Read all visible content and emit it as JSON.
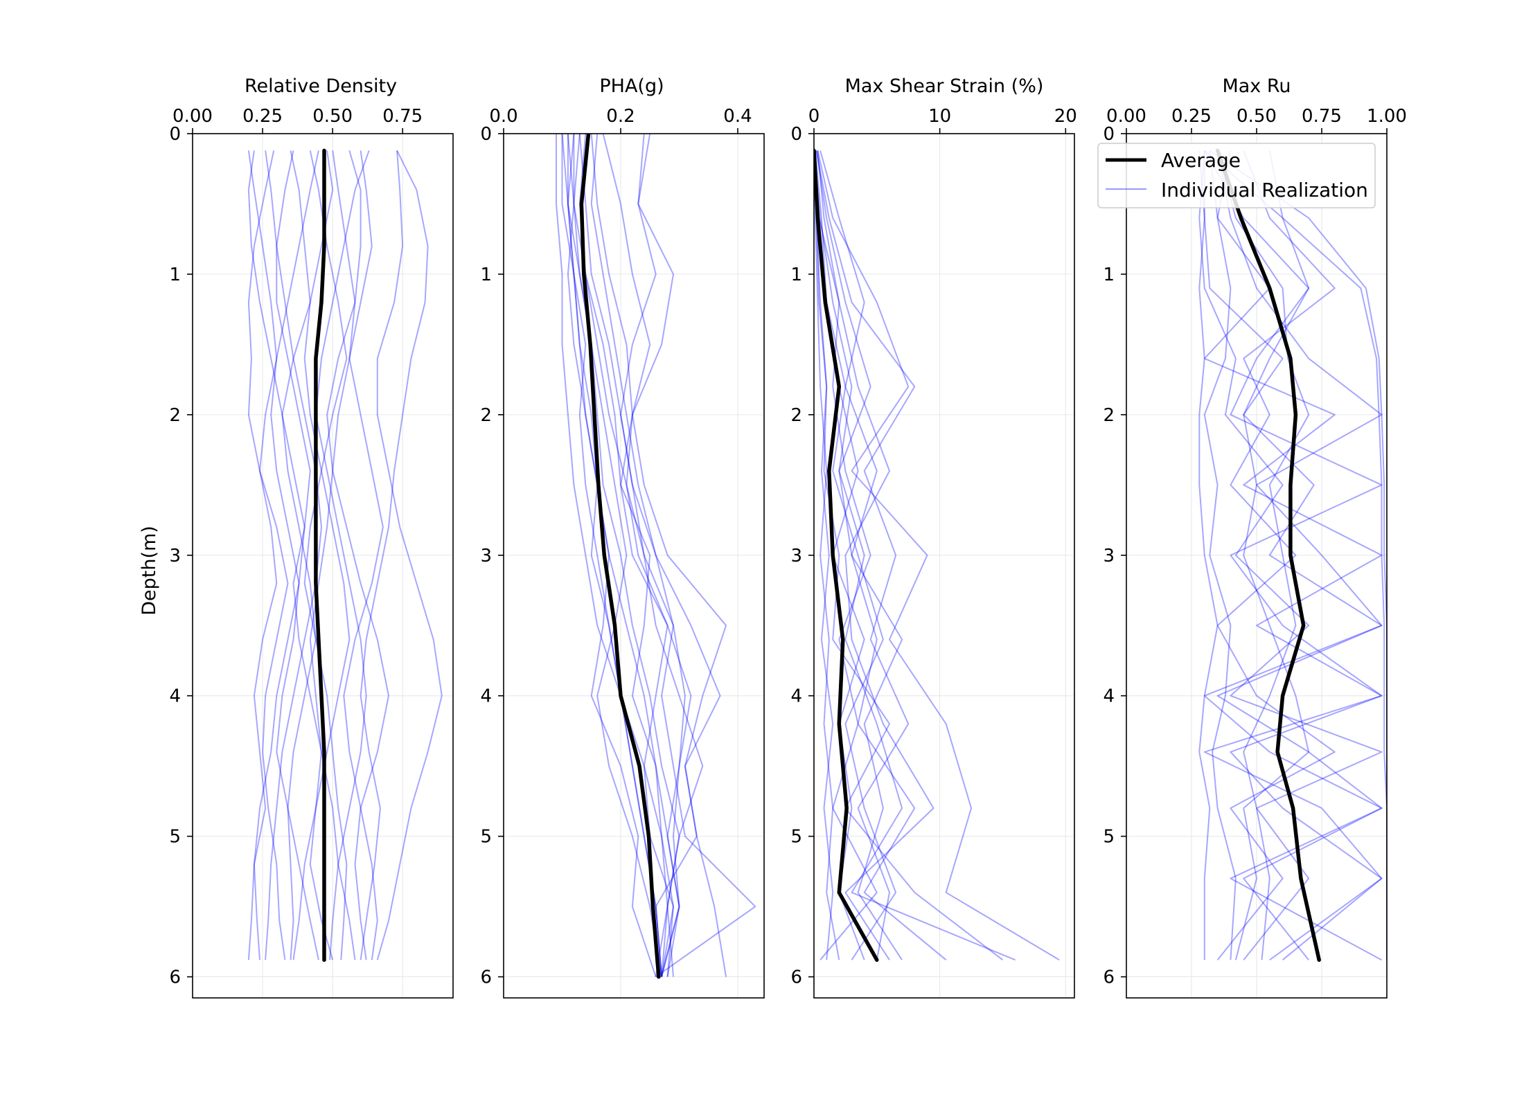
{
  "chart_data": [
    {
      "type": "line",
      "title": "Relative Density",
      "ylabel": "Depth(m)",
      "xlim": [
        0,
        0.93
      ],
      "ylim": [
        6.15,
        0
      ],
      "xticks": [
        0.0,
        0.25,
        0.5,
        0.75
      ],
      "xtick_labels": [
        "0.00",
        "0.25",
        "0.50",
        "0.75"
      ],
      "yticks": [
        0,
        1,
        2,
        3,
        4,
        5,
        6
      ],
      "ytick_labels": [
        "0",
        "1",
        "2",
        "3",
        "4",
        "5",
        "6"
      ],
      "grid": true,
      "depth": [
        0.12,
        0.4,
        0.8,
        1.2,
        1.6,
        2.0,
        2.4,
        2.8,
        3.2,
        3.6,
        4.0,
        4.4,
        4.8,
        5.2,
        5.6,
        5.88
      ],
      "average": {
        "name": "Average",
        "values": [
          0.47,
          0.47,
          0.47,
          0.46,
          0.44,
          0.44,
          0.44,
          0.44,
          0.44,
          0.45,
          0.46,
          0.47,
          0.47,
          0.47,
          0.47,
          0.47
        ]
      },
      "realizations": [
        [
          0.2,
          0.22,
          0.25,
          0.28,
          0.3,
          0.26,
          0.24,
          0.28,
          0.3,
          0.25,
          0.22,
          0.24,
          0.26,
          0.22,
          0.21,
          0.2
        ],
        [
          0.29,
          0.26,
          0.22,
          0.2,
          0.21,
          0.2,
          0.24,
          0.3,
          0.34,
          0.3,
          0.26,
          0.25,
          0.27,
          0.3,
          0.31,
          0.33
        ],
        [
          0.35,
          0.38,
          0.4,
          0.42,
          0.36,
          0.32,
          0.34,
          0.38,
          0.42,
          0.44,
          0.4,
          0.36,
          0.34,
          0.35,
          0.36,
          0.35
        ],
        [
          0.42,
          0.45,
          0.48,
          0.52,
          0.55,
          0.5,
          0.46,
          0.42,
          0.4,
          0.44,
          0.48,
          0.5,
          0.52,
          0.55,
          0.54,
          0.53
        ],
        [
          0.5,
          0.52,
          0.55,
          0.58,
          0.56,
          0.52,
          0.5,
          0.48,
          0.45,
          0.42,
          0.44,
          0.46,
          0.5,
          0.52,
          0.56,
          0.58
        ],
        [
          0.56,
          0.6,
          0.6,
          0.58,
          0.52,
          0.48,
          0.5,
          0.55,
          0.6,
          0.66,
          0.7,
          0.66,
          0.6,
          0.58,
          0.6,
          0.62
        ],
        [
          0.63,
          0.58,
          0.54,
          0.5,
          0.46,
          0.44,
          0.48,
          0.52,
          0.56,
          0.6,
          0.62,
          0.6,
          0.56,
          0.52,
          0.5,
          0.49
        ],
        [
          0.73,
          0.74,
          0.75,
          0.72,
          0.66,
          0.66,
          0.7,
          0.74,
          0.8,
          0.86,
          0.89,
          0.84,
          0.78,
          0.74,
          0.7,
          0.66
        ],
        [
          0.73,
          0.8,
          0.84,
          0.83,
          0.78,
          0.75,
          0.72,
          0.7,
          0.66,
          0.62,
          0.6,
          0.63,
          0.67,
          0.65,
          0.62,
          0.6
        ],
        [
          0.26,
          0.28,
          0.3,
          0.33,
          0.36,
          0.4,
          0.44,
          0.46,
          0.44,
          0.4,
          0.36,
          0.32,
          0.3,
          0.28,
          0.27,
          0.26
        ],
        [
          0.45,
          0.42,
          0.38,
          0.34,
          0.3,
          0.28,
          0.3,
          0.34,
          0.38,
          0.36,
          0.32,
          0.3,
          0.34,
          0.38,
          0.42,
          0.45
        ],
        [
          0.48,
          0.5,
          0.46,
          0.42,
          0.4,
          0.42,
          0.46,
          0.5,
          0.54,
          0.56,
          0.52,
          0.48,
          0.44,
          0.42,
          0.46,
          0.5
        ],
        [
          0.22,
          0.2,
          0.21,
          0.24,
          0.28,
          0.32,
          0.36,
          0.4,
          0.38,
          0.34,
          0.3,
          0.28,
          0.24,
          0.22,
          0.23,
          0.24
        ],
        [
          0.36,
          0.33,
          0.3,
          0.3,
          0.34,
          0.38,
          0.42,
          0.4,
          0.36,
          0.38,
          0.42,
          0.46,
          0.44,
          0.4,
          0.38,
          0.36
        ],
        [
          0.6,
          0.62,
          0.64,
          0.6,
          0.56,
          0.6,
          0.64,
          0.68,
          0.64,
          0.58,
          0.54,
          0.56,
          0.6,
          0.64,
          0.66,
          0.64
        ]
      ]
    },
    {
      "type": "line",
      "title": "PHA(g)",
      "xlim": [
        0,
        0.445
      ],
      "ylim": [
        6.15,
        0
      ],
      "xticks": [
        0.0,
        0.2,
        0.4
      ],
      "xtick_labels": [
        "0.0",
        "0.2",
        "0.4"
      ],
      "yticks": [
        0,
        1,
        2,
        3,
        4,
        5,
        6
      ],
      "ytick_labels": [
        "0",
        "1",
        "2",
        "3",
        "4",
        "5",
        "6"
      ],
      "grid": true,
      "depth": [
        0.0,
        0.5,
        1.0,
        1.5,
        2.0,
        2.5,
        3.0,
        3.5,
        4.0,
        4.5,
        5.0,
        5.5,
        6.0
      ],
      "average": {
        "name": "Average",
        "values": [
          0.145,
          0.133,
          0.137,
          0.148,
          0.155,
          0.162,
          0.172,
          0.19,
          0.2,
          0.232,
          0.248,
          0.255,
          0.265
        ]
      },
      "realizations": [
        [
          0.09,
          0.09,
          0.1,
          0.1,
          0.11,
          0.12,
          0.14,
          0.16,
          0.2,
          0.24,
          0.27,
          0.28,
          0.29
        ],
        [
          0.1,
          0.1,
          0.12,
          0.14,
          0.13,
          0.14,
          0.16,
          0.18,
          0.2,
          0.22,
          0.24,
          0.26,
          0.27
        ],
        [
          0.11,
          0.11,
          0.12,
          0.13,
          0.14,
          0.16,
          0.18,
          0.21,
          0.24,
          0.26,
          0.28,
          0.3,
          0.28
        ],
        [
          0.12,
          0.12,
          0.13,
          0.15,
          0.16,
          0.17,
          0.2,
          0.22,
          0.25,
          0.27,
          0.3,
          0.28,
          0.27
        ],
        [
          0.13,
          0.14,
          0.15,
          0.18,
          0.2,
          0.22,
          0.24,
          0.26,
          0.3,
          0.34,
          0.3,
          0.28,
          0.26
        ],
        [
          0.15,
          0.16,
          0.18,
          0.21,
          0.22,
          0.2,
          0.22,
          0.28,
          0.32,
          0.3,
          0.28,
          0.3,
          0.27
        ],
        [
          0.17,
          0.2,
          0.22,
          0.25,
          0.22,
          0.24,
          0.28,
          0.38,
          0.34,
          0.31,
          0.33,
          0.36,
          0.38
        ],
        [
          0.24,
          0.23,
          0.29,
          0.27,
          0.22,
          0.21,
          0.24,
          0.29,
          0.27,
          0.29,
          0.31,
          0.43,
          0.26
        ],
        [
          0.25,
          0.23,
          0.26,
          0.22,
          0.2,
          0.22,
          0.26,
          0.32,
          0.37,
          0.31,
          0.33,
          0.26,
          0.27
        ],
        [
          0.14,
          0.13,
          0.14,
          0.16,
          0.18,
          0.21,
          0.23,
          0.28,
          0.26,
          0.24,
          0.25,
          0.29,
          0.28
        ],
        [
          0.12,
          0.11,
          0.12,
          0.13,
          0.15,
          0.16,
          0.15,
          0.18,
          0.2,
          0.22,
          0.24,
          0.26,
          0.27
        ],
        [
          0.1,
          0.11,
          0.13,
          0.15,
          0.17,
          0.19,
          0.21,
          0.19,
          0.16,
          0.18,
          0.22,
          0.25,
          0.27
        ],
        [
          0.13,
          0.12,
          0.14,
          0.17,
          0.19,
          0.2,
          0.25,
          0.24,
          0.22,
          0.26,
          0.27,
          0.29,
          0.27
        ],
        [
          0.11,
          0.12,
          0.11,
          0.12,
          0.14,
          0.16,
          0.18,
          0.17,
          0.15,
          0.2,
          0.23,
          0.22,
          0.26
        ],
        [
          0.16,
          0.15,
          0.17,
          0.19,
          0.21,
          0.23,
          0.26,
          0.29,
          0.31,
          0.3,
          0.29,
          0.3,
          0.27
        ]
      ]
    },
    {
      "type": "line",
      "title": "Max Shear Strain (%)",
      "xlim": [
        0,
        20.7
      ],
      "ylim": [
        6.15,
        0
      ],
      "xticks": [
        0,
        10,
        20
      ],
      "xtick_labels": [
        "0",
        "10",
        "20"
      ],
      "yticks": [
        0,
        1,
        2,
        3,
        4,
        5,
        6
      ],
      "ytick_labels": [
        "0",
        "1",
        "2",
        "3",
        "4",
        "5",
        "6"
      ],
      "grid": true,
      "depth": [
        0.12,
        0.6,
        1.2,
        1.8,
        2.4,
        3.0,
        3.6,
        4.2,
        4.8,
        5.4,
        5.88
      ],
      "average": {
        "name": "Average",
        "values": [
          0.0,
          0.3,
          0.9,
          2.0,
          1.2,
          1.5,
          2.3,
          2.0,
          2.6,
          2.0,
          5.0
        ]
      },
      "realizations": [
        [
          0.0,
          0.5,
          1.5,
          3.0,
          2.0,
          4.0,
          2.5,
          5.0,
          7.0,
          3.0,
          16.0
        ],
        [
          0.3,
          1.5,
          5.0,
          7.5,
          3.0,
          9.0,
          6.0,
          10.5,
          12.5,
          10.5,
          19.5
        ],
        [
          0.2,
          1.0,
          2.5,
          4.5,
          2.0,
          3.0,
          5.0,
          3.5,
          8.0,
          4.0,
          10.5
        ],
        [
          0.1,
          0.3,
          1.0,
          2.0,
          3.5,
          1.5,
          4.0,
          2.0,
          3.0,
          2.0,
          4.0
        ],
        [
          0.0,
          0.2,
          0.5,
          1.0,
          0.8,
          2.0,
          1.5,
          6.0,
          2.5,
          8.0,
          15.0
        ],
        [
          0.2,
          1.2,
          3.0,
          8.0,
          4.0,
          6.5,
          4.5,
          7.5,
          3.5,
          6.0,
          5.0
        ],
        [
          0.0,
          0.1,
          0.3,
          0.5,
          1.0,
          0.5,
          1.2,
          0.8,
          1.5,
          1.0,
          2.0
        ],
        [
          0.5,
          2.0,
          4.0,
          2.5,
          5.0,
          3.0,
          7.0,
          4.0,
          5.5,
          3.5,
          7.0
        ],
        [
          0.1,
          0.4,
          2.0,
          1.5,
          2.5,
          4.5,
          2.0,
          3.5,
          1.5,
          5.0,
          0.5
        ],
        [
          0.0,
          0.2,
          0.4,
          1.0,
          0.6,
          1.2,
          0.6,
          1.5,
          0.8,
          1.5,
          1.0
        ],
        [
          0.3,
          0.8,
          2.0,
          3.5,
          6.0,
          2.5,
          3.0,
          5.5,
          9.5,
          2.5,
          6.0
        ],
        [
          0.1,
          0.6,
          1.0,
          2.5,
          1.5,
          3.5,
          5.5,
          2.5,
          4.0,
          6.5,
          3.0
        ]
      ]
    },
    {
      "type": "line",
      "title": "Max Ru",
      "xlim": [
        0,
        1.0
      ],
      "ylim": [
        6.15,
        0
      ],
      "xticks": [
        0.0,
        0.25,
        0.5,
        0.75,
        1.0
      ],
      "xtick_labels": [
        "0.00",
        "0.25",
        "0.50",
        "0.75",
        "1.00"
      ],
      "yticks": [
        0,
        1,
        2,
        3,
        4,
        5,
        6
      ],
      "ytick_labels": [
        "0",
        "1",
        "2",
        "3",
        "4",
        "5",
        "6"
      ],
      "grid": true,
      "legend": {
        "placement": "top-right",
        "entries": [
          "Average",
          "Individual Realization"
        ]
      },
      "depth": [
        0.12,
        0.6,
        1.1,
        1.6,
        2.0,
        2.5,
        3.0,
        3.5,
        4.0,
        4.4,
        4.8,
        5.3,
        5.88
      ],
      "average": {
        "name": "Average",
        "values": [
          0.35,
          0.44,
          0.55,
          0.63,
          0.65,
          0.63,
          0.63,
          0.68,
          0.6,
          0.58,
          0.64,
          0.67,
          0.74
        ]
      },
      "realizations": [
        [
          0.3,
          0.6,
          0.9,
          0.96,
          0.97,
          0.98,
          0.98,
          0.99,
          0.99,
          0.99,
          1.0,
          1.0,
          1.0
        ],
        [
          0.32,
          0.7,
          0.92,
          0.97,
          0.98,
          0.99,
          0.99,
          1.0,
          1.0,
          1.0,
          1.0,
          1.0,
          1.0
        ],
        [
          0.3,
          0.3,
          0.32,
          0.6,
          0.45,
          0.72,
          0.55,
          0.98,
          0.3,
          0.55,
          0.98,
          0.4,
          0.98
        ],
        [
          0.4,
          0.35,
          0.55,
          0.3,
          0.8,
          0.45,
          0.98,
          0.5,
          0.98,
          0.4,
          0.6,
          0.98,
          0.6
        ],
        [
          0.3,
          0.28,
          0.3,
          0.42,
          0.38,
          0.6,
          0.42,
          0.7,
          0.4,
          0.98,
          0.5,
          0.7,
          0.45
        ],
        [
          0.35,
          0.4,
          0.5,
          0.7,
          0.98,
          0.5,
          0.75,
          0.98,
          0.35,
          0.7,
          0.98,
          0.45,
          0.7
        ],
        [
          0.3,
          0.45,
          0.7,
          0.5,
          0.4,
          0.98,
          0.4,
          0.6,
          0.98,
          0.3,
          0.75,
          0.98,
          0.55
        ],
        [
          0.28,
          0.3,
          0.28,
          0.3,
          0.28,
          0.28,
          0.3,
          0.35,
          0.3,
          0.28,
          0.32,
          0.3,
          0.3
        ],
        [
          0.45,
          0.55,
          0.8,
          0.45,
          0.55,
          0.4,
          0.65,
          0.35,
          0.5,
          0.8,
          0.4,
          0.6,
          0.35
        ],
        [
          0.32,
          0.35,
          0.4,
          0.38,
          0.3,
          0.35,
          0.32,
          0.4,
          0.38,
          0.33,
          0.35,
          0.42,
          0.4
        ],
        [
          0.35,
          0.42,
          0.6,
          0.62,
          0.7,
          0.55,
          0.6,
          0.65,
          0.55,
          0.45,
          0.5,
          0.55,
          0.52
        ],
        [
          0.55,
          0.6,
          0.7,
          0.55,
          0.45,
          0.5,
          0.45,
          0.55,
          0.65,
          0.7,
          0.45,
          0.5,
          0.42
        ]
      ]
    }
  ],
  "colors": {
    "average": "#000000",
    "realization": "#0000ff",
    "grid": "#e6e6e6",
    "legend_border": "#cccccc"
  }
}
